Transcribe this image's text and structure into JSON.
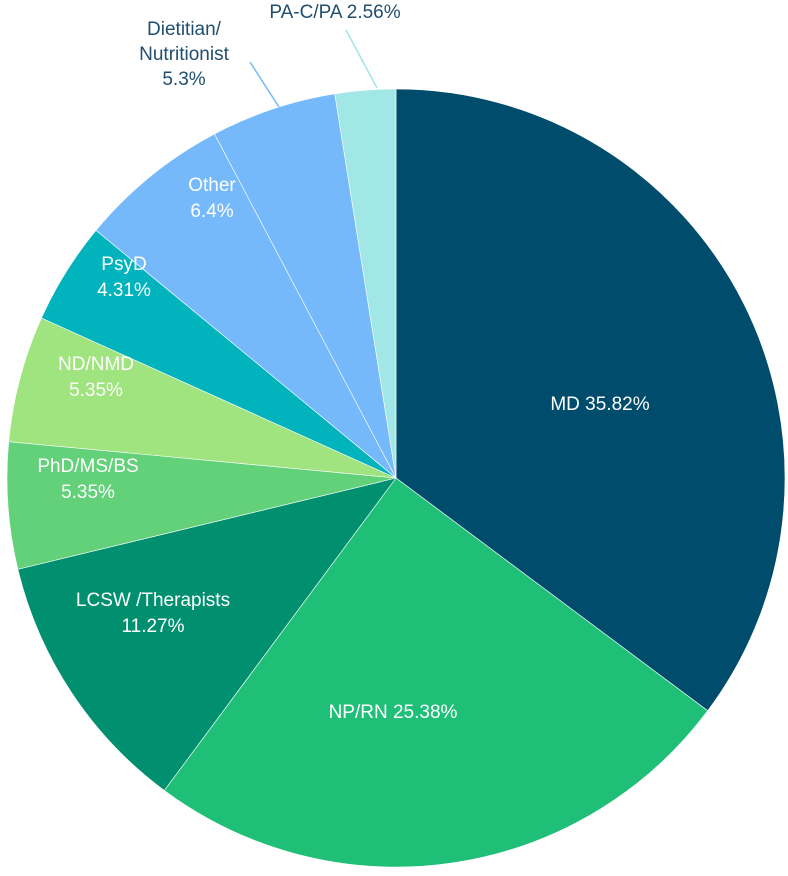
{
  "chart_data": {
    "type": "pie",
    "title": "",
    "slices": [
      {
        "label": "MD",
        "value": 35.82,
        "value_text": "35.82%",
        "color": "#004c6d",
        "label_color": "#ffffff"
      },
      {
        "label": "NP/RN",
        "value": 25.38,
        "value_text": "25.38%",
        "color": "#20bf78",
        "label_color": "#ffffff"
      },
      {
        "label": "LCSW /Therapists",
        "value": 11.27,
        "value_text": "11.27%",
        "color": "#00906f",
        "label_color": "#ffffff"
      },
      {
        "label": "PhD/MS/BS",
        "value": 5.35,
        "value_text": "5.35%",
        "color": "#62d17a",
        "label_color": "#ffffff"
      },
      {
        "label": "ND/NMD",
        "value": 5.35,
        "value_text": "5.35%",
        "color": "#9fe47f",
        "label_color": "#ffffff"
      },
      {
        "label": "PsyD",
        "value": 4.31,
        "value_text": "4.31%",
        "color": "#00b3bd",
        "label_color": "#ffffff"
      },
      {
        "label": "Other",
        "value": 6.4,
        "value_text": "6.4%",
        "color": "#76b9fa",
        "label_color": "#ffffff"
      },
      {
        "label": "Dietitian/ Nutritionist",
        "value": 5.3,
        "value_text": "5.3%",
        "color": "#76b9fa",
        "label_color": "#1f4e6e"
      },
      {
        "label": "PA-C/PA",
        "value": 2.56,
        "value_text": "2.56%",
        "color": "#a0e7e5",
        "label_color": "#1f4e6e"
      }
    ]
  }
}
